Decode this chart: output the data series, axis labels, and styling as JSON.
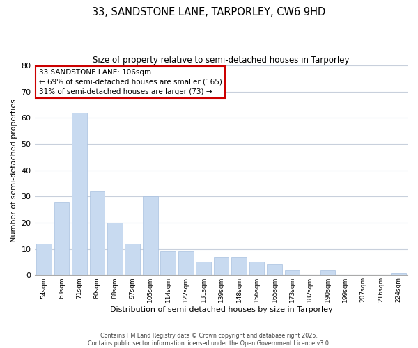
{
  "title": "33, SANDSTONE LANE, TARPORLEY, CW6 9HD",
  "subtitle": "Size of property relative to semi-detached houses in Tarporley",
  "xlabel": "Distribution of semi-detached houses by size in Tarporley",
  "ylabel": "Number of semi-detached properties",
  "bin_labels": [
    "54sqm",
    "63sqm",
    "71sqm",
    "80sqm",
    "88sqm",
    "97sqm",
    "105sqm",
    "114sqm",
    "122sqm",
    "131sqm",
    "139sqm",
    "148sqm",
    "156sqm",
    "165sqm",
    "173sqm",
    "182sqm",
    "190sqm",
    "199sqm",
    "207sqm",
    "216sqm",
    "224sqm"
  ],
  "bar_values": [
    12,
    28,
    62,
    32,
    20,
    12,
    30,
    9,
    9,
    5,
    7,
    7,
    5,
    4,
    2,
    0,
    2,
    0,
    0,
    0,
    1
  ],
  "bar_color": "#c8daf0",
  "bar_edgecolor": "#a8c0e0",
  "highlight_bar_index": 6,
  "annotation_title": "33 SANDSTONE LANE: 106sqm",
  "annotation_line1": "← 69% of semi-detached houses are smaller (165)",
  "annotation_line2": "31% of semi-detached houses are larger (73) →",
  "annotation_box_facecolor": "#ffffff",
  "annotation_box_edgecolor": "#cc0000",
  "ylim": [
    0,
    80
  ],
  "yticks": [
    0,
    10,
    20,
    30,
    40,
    50,
    60,
    70,
    80
  ],
  "background_color": "#ffffff",
  "grid_color": "#c8d0dc",
  "footer_line1": "Contains HM Land Registry data © Crown copyright and database right 2025.",
  "footer_line2": "Contains public sector information licensed under the Open Government Licence v3.0."
}
